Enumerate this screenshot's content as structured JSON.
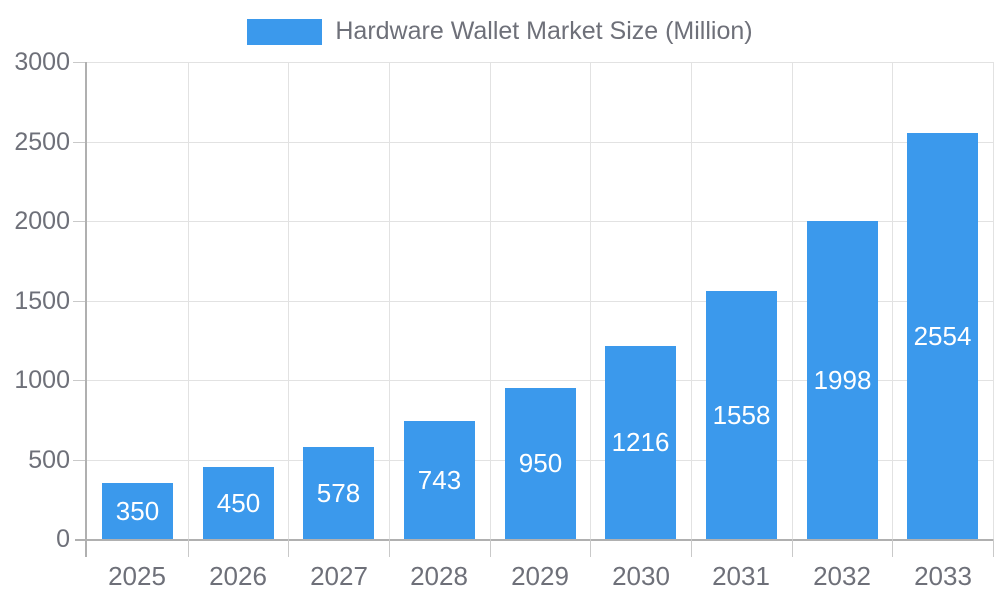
{
  "legend": {
    "label": "Hardware Wallet Market Size (Million)"
  },
  "colors": {
    "bar": "#3b99ec",
    "grid": "#e2e2e2",
    "tick": "#c9c9c9",
    "axis": "#b0b0b0",
    "text": "#6e7079",
    "value_label": "#ffffff",
    "background": "#ffffff"
  },
  "chart_data": {
    "type": "bar",
    "title": "Hardware Wallet Market Size (Million)",
    "categories": [
      "2025",
      "2026",
      "2027",
      "2028",
      "2029",
      "2030",
      "2031",
      "2032",
      "2033"
    ],
    "values": [
      350,
      450,
      578,
      743,
      950,
      1216,
      1558,
      1998,
      2554
    ],
    "xlabel": "",
    "ylabel": "",
    "ylim": [
      0,
      3000
    ],
    "yticks": [
      0,
      500,
      1000,
      1500,
      2000,
      2500,
      3000
    ],
    "grid": true,
    "legend_position": "top-center",
    "value_label_position": "inside-center"
  }
}
